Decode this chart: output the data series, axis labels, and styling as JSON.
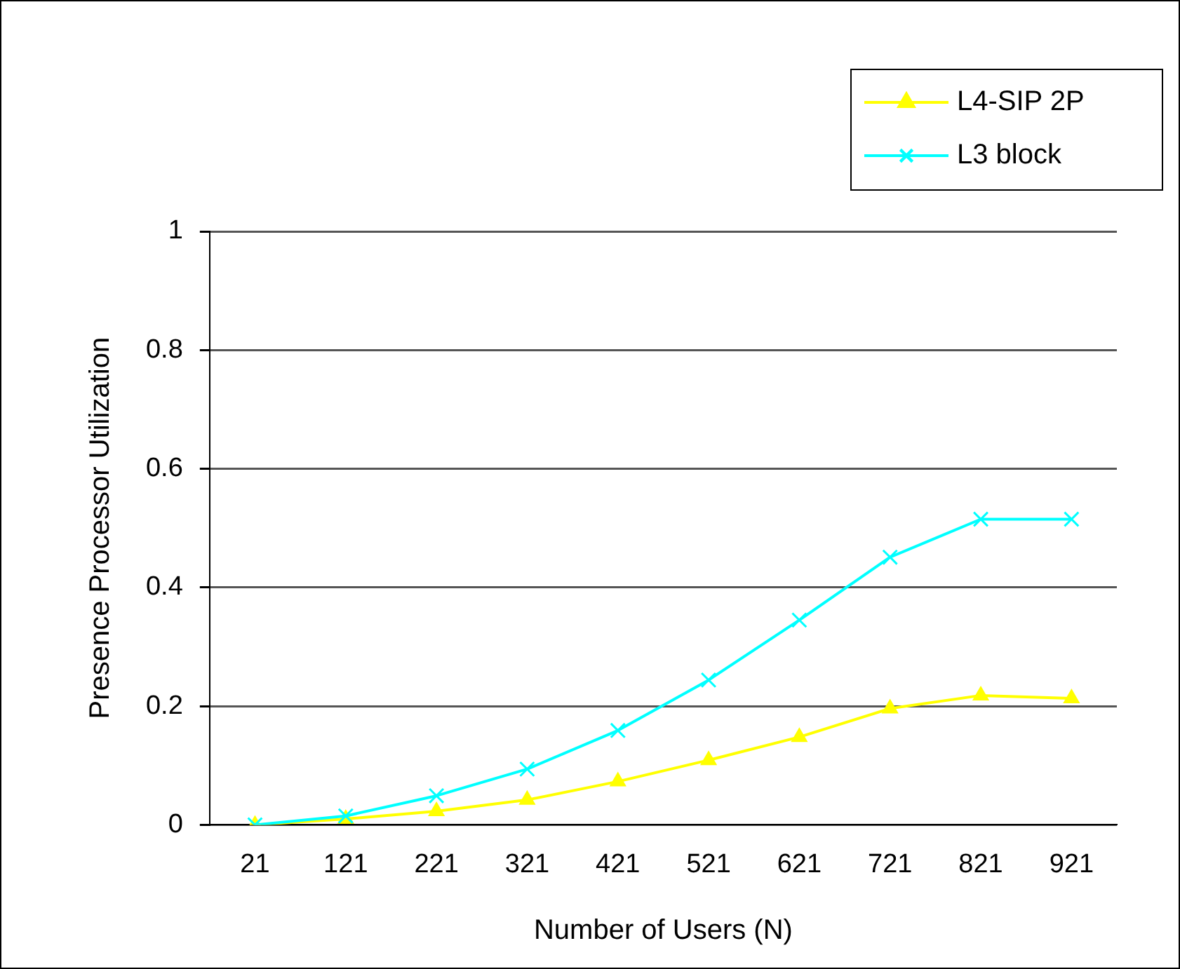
{
  "chart_data": {
    "type": "line",
    "xlabel": "Number of Users (N)",
    "ylabel": "Presence Processor Utilization",
    "categories": [
      "21",
      "121",
      "221",
      "321",
      "421",
      "521",
      "621",
      "721",
      "821",
      "921"
    ],
    "series": [
      {
        "name": "L4-SIP 2P",
        "color": "#ffff00",
        "marker": "triangle",
        "values": [
          0,
          0.01,
          0.023,
          0.042,
          0.073,
          0.109,
          0.148,
          0.196,
          0.218,
          0.213
        ]
      },
      {
        "name": "L3 block",
        "color": "#00ffff",
        "marker": "cross",
        "values": [
          0,
          0.015,
          0.049,
          0.094,
          0.159,
          0.244,
          0.345,
          0.451,
          0.515,
          0.515
        ]
      }
    ],
    "ylim": [
      0,
      1
    ],
    "yticks": [
      0,
      0.2,
      0.4,
      0.6,
      0.8,
      1
    ],
    "grid": "y",
    "legend": "top right"
  }
}
